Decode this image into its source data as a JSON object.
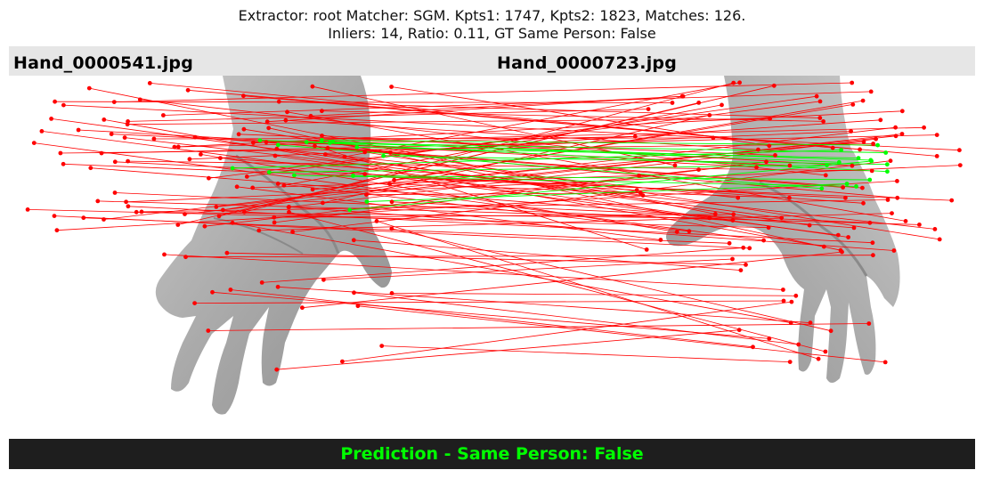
{
  "title": {
    "line1": "Extractor:  root Matcher: SGM. Kpts1: 1747, Kpts2: 1823, Matches: 126.",
    "line2": "Inliers: 14, Ratio: 0.11, GT Same Person: False"
  },
  "images": {
    "left_name": "Hand_0000541.jpg",
    "right_name": "Hand_0000723.jpg"
  },
  "prediction": {
    "text": "Prediction - Same Person: False"
  },
  "colors": {
    "outlier": "#ff0000",
    "inlier": "#00ff00",
    "label_bar": "#e6e6e6",
    "prediction_bar": "#1e1e1e",
    "prediction_text": "#00ff00"
  }
}
